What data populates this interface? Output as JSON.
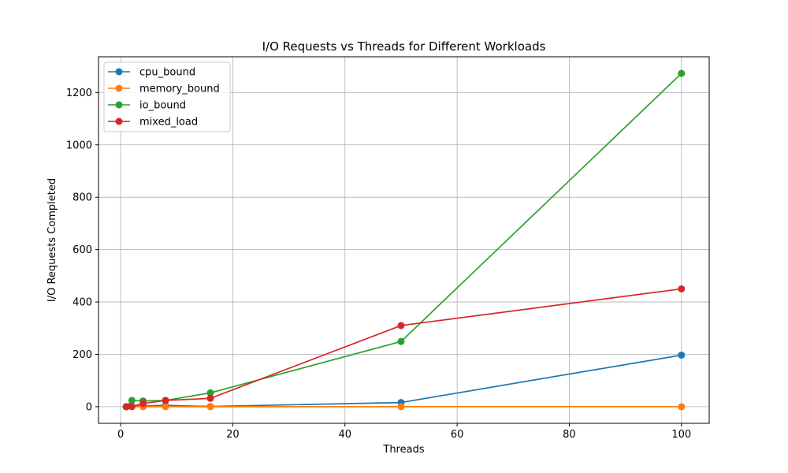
{
  "chart_data": {
    "type": "line",
    "title": "I/O Requests vs Threads for Different Workloads",
    "xlabel": "Threads",
    "ylabel": "I/O Requests Completed",
    "xlim": [
      -3.95,
      104.95
    ],
    "ylim": [
      -63.5,
      1336.5
    ],
    "xticks": [
      0,
      20,
      40,
      60,
      80,
      100
    ],
    "yticks": [
      0,
      200,
      400,
      600,
      800,
      1000,
      1200
    ],
    "grid": true,
    "legend_position": "top-left",
    "x": [
      1,
      2,
      4,
      8,
      16,
      50,
      100
    ],
    "series": [
      {
        "name": "cpu_bound",
        "color": "#1f77b4",
        "values": [
          0,
          1,
          3,
          5,
          1,
          16,
          197
        ]
      },
      {
        "name": "memory_bound",
        "color": "#ff7f0e",
        "values": [
          0,
          0,
          0,
          0,
          0,
          0,
          0
        ]
      },
      {
        "name": "io_bound",
        "color": "#2ca02c",
        "values": [
          0,
          24,
          22,
          24,
          53,
          249,
          1273
        ]
      },
      {
        "name": "mixed_load",
        "color": "#d62728",
        "values": [
          0,
          1,
          12,
          24,
          32,
          310,
          450
        ]
      }
    ]
  }
}
